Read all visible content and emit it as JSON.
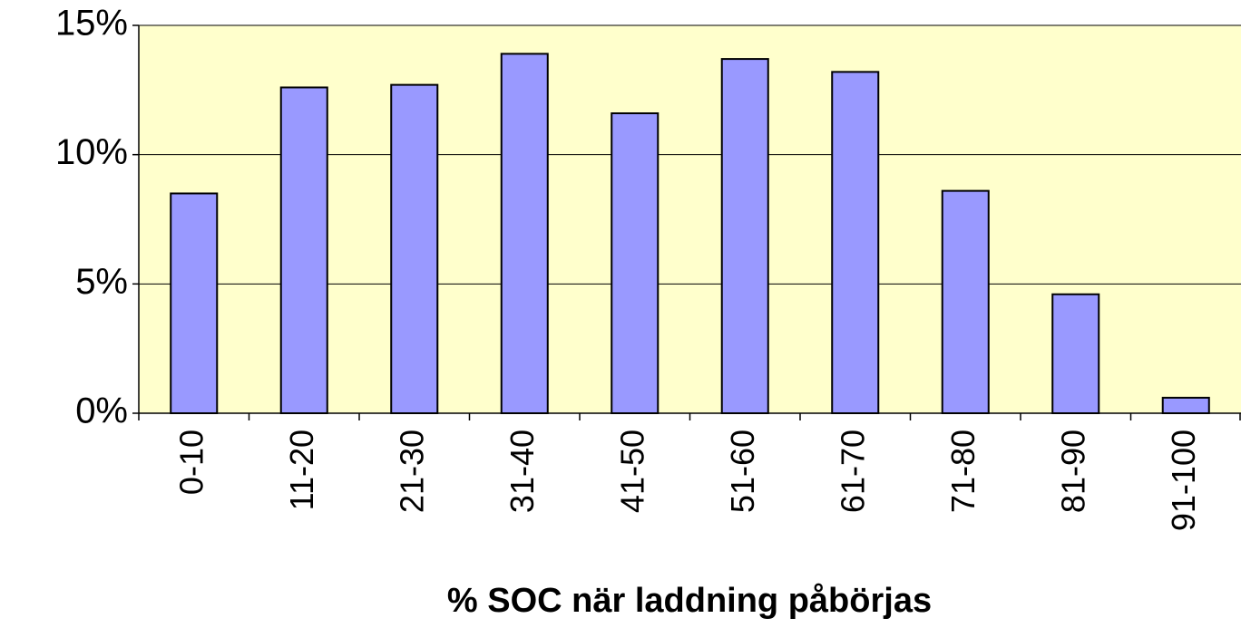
{
  "chart_data": {
    "type": "bar",
    "x_label": "% SOC när laddning påbörjas",
    "categories": [
      "0-10",
      "11-20",
      "21-30",
      "31-40",
      "41-50",
      "51-60",
      "61-70",
      "71-80",
      "81-90",
      "91-100"
    ],
    "values": [
      8.5,
      12.6,
      12.7,
      13.9,
      11.6,
      13.7,
      13.2,
      8.6,
      4.6,
      0.6
    ],
    "color": "#9999ff",
    "ylim": [
      0,
      15
    ],
    "yticks": [
      {
        "value": 0,
        "label": "0%"
      },
      {
        "value": 5,
        "label": "5%"
      },
      {
        "value": 10,
        "label": "10%"
      },
      {
        "value": 15,
        "label": "15%"
      }
    ],
    "grid": true
  }
}
